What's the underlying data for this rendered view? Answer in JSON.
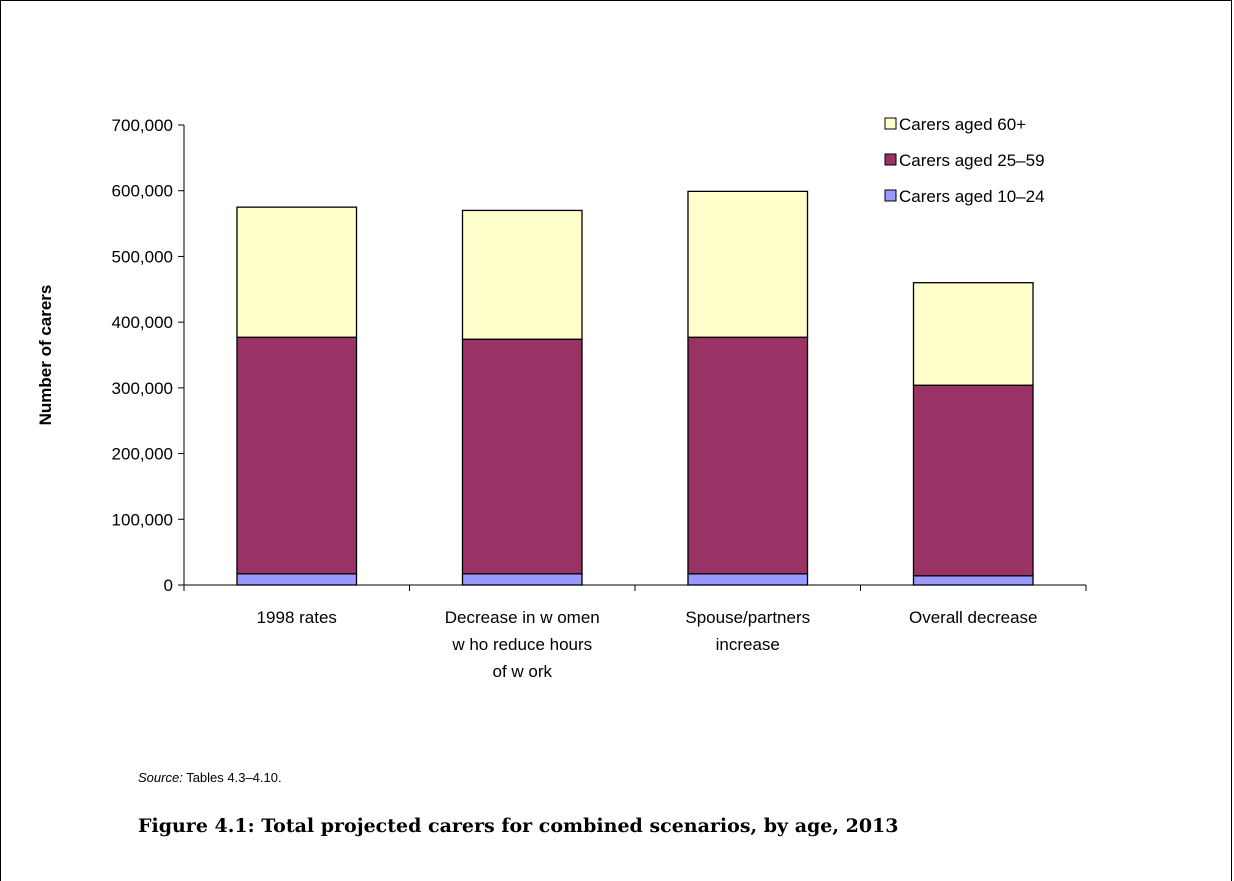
{
  "chart_data": {
    "type": "bar",
    "stacked": true,
    "categories": [
      [
        "1998 rates"
      ],
      [
        "Decrease in w omen",
        "w ho reduce hours",
        "of w ork"
      ],
      [
        "Spouse/partners",
        "increase"
      ],
      [
        "Overall decrease"
      ]
    ],
    "series": [
      {
        "name": "Carers aged 10–24",
        "color": "#9999ff",
        "values": [
          17000,
          17000,
          17000,
          14000
        ]
      },
      {
        "name": "Carers aged 25–59",
        "color": "#993366",
        "values": [
          360000,
          357000,
          360000,
          290000
        ]
      },
      {
        "name": "Carers aged 60+",
        "color": "#ffffcc",
        "values": [
          198000,
          196000,
          222000,
          156000
        ]
      }
    ],
    "ylabel": "Number of carers",
    "ylim": [
      0,
      700000
    ],
    "yticks": [
      0,
      100000,
      200000,
      300000,
      400000,
      500000,
      600000,
      700000
    ],
    "ytick_labels": [
      "0",
      "100,000",
      "200,000",
      "300,000",
      "400,000",
      "500,000",
      "600,000",
      "700,000"
    ],
    "grid": false,
    "legend_position": "top-right",
    "legend_order": [
      "Carers aged 60+",
      "Carers aged 25–59",
      "Carers aged 10–24"
    ]
  },
  "source": {
    "label": "Source:",
    "text": " Tables 4.3–4.10."
  },
  "caption": "Figure 4.1: Total projected carers for combined scenarios, by age, 2013"
}
